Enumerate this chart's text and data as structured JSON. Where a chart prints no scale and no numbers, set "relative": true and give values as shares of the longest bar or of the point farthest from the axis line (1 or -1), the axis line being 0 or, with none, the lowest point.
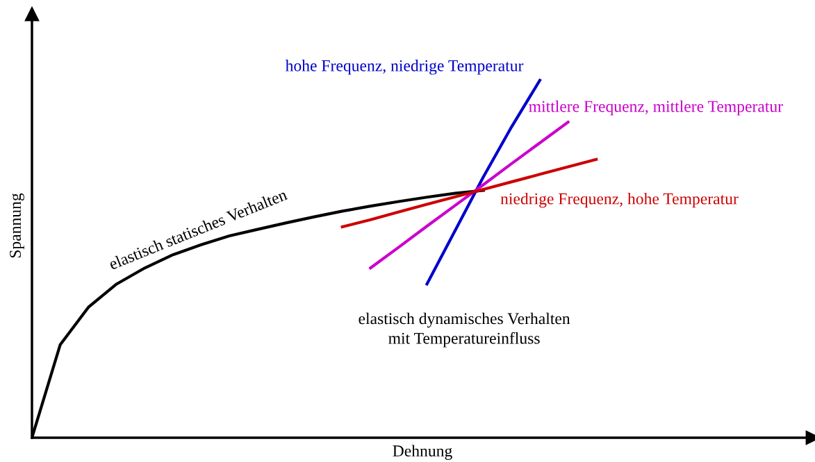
{
  "chart_data": {
    "type": "line",
    "relative": true,
    "xlabel": "Dehnung",
    "ylabel": "Spannung",
    "legend": false,
    "marker": "none",
    "line_style": "solid",
    "annotations": [
      "elastisch dynamisches Verhalten\nmit Temperatureinfluss"
    ],
    "categories": [
      null,
      null,
      null,
      null,
      null,
      null,
      null,
      null,
      null,
      null,
      null,
      null,
      null,
      null,
      null,
      null,
      null,
      null,
      null,
      null,
      null
    ],
    "series": [
      {
        "name": "elastisch statisches Verhalten",
        "color": "#000000",
        "values": [
          0,
          0.26,
          0.365,
          0.43,
          0.475,
          0.512,
          0.54,
          0.565,
          0.583,
          0.601,
          0.618,
          0.634,
          0.648,
          0.661,
          0.673,
          0.684,
          0.692,
          null,
          null,
          null,
          null
        ]
      },
      {
        "name": "hohe Frequenz, niedrige Temperatur",
        "color": "#0000cc",
        "values": [
          null,
          null,
          null,
          null,
          null,
          null,
          null,
          null,
          null,
          null,
          null,
          null,
          null,
          null,
          0.43,
          0.58,
          0.73,
          0.87,
          1.0,
          null,
          null
        ]
      },
      {
        "name": "mittlere Frequenz, mittlere Temperatur",
        "color": "#cc00cc",
        "values": [
          null,
          null,
          null,
          null,
          null,
          null,
          null,
          null,
          null,
          null,
          null,
          null,
          0.475,
          0.533,
          0.592,
          0.65,
          0.708,
          0.767,
          0.825,
          0.883,
          null
        ]
      },
      {
        "name": "niedrige Frequenz, hohe Temperatur",
        "color": "#cc0000",
        "values": [
          null,
          null,
          null,
          null,
          null,
          null,
          null,
          null,
          null,
          null,
          null,
          0.59,
          0.61,
          0.632,
          0.653,
          0.674,
          0.695,
          0.716,
          0.737,
          0.758,
          0.779
        ]
      }
    ]
  }
}
